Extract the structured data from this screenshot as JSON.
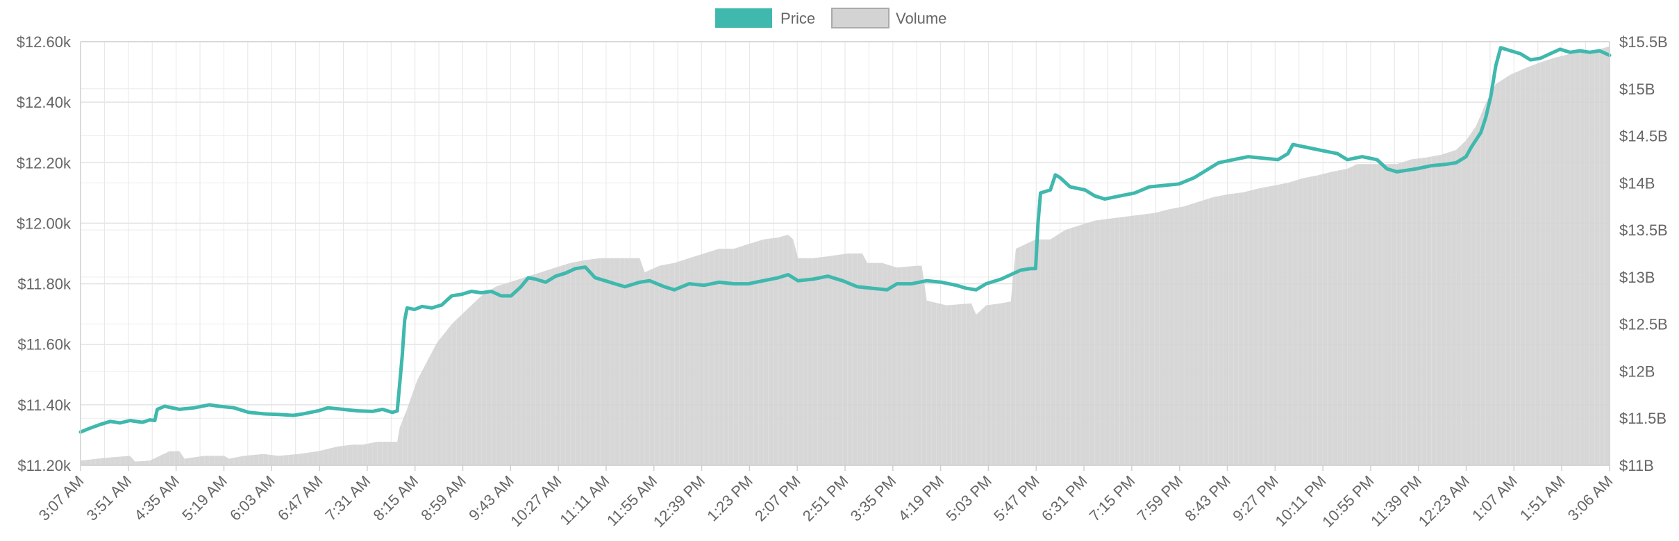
{
  "chart_data": {
    "type": "line",
    "legend": {
      "position": "top-center",
      "items": [
        {
          "label": "Price",
          "color": "#3fb8ad"
        },
        {
          "label": "Volume",
          "color": "#d3d3d3"
        }
      ]
    },
    "grid": true,
    "x_tick_labels": [
      "3:07 AM",
      "3:51 AM",
      "4:35 AM",
      "5:19 AM",
      "6:03 AM",
      "6:47 AM",
      "7:31 AM",
      "8:15 AM",
      "8:59 AM",
      "9:43 AM",
      "10:27 AM",
      "11:11 AM",
      "11:55 AM",
      "12:39 PM",
      "1:23 PM",
      "2:07 PM",
      "2:51 PM",
      "3:35 PM",
      "4:19 PM",
      "5:03 PM",
      "5:47 PM",
      "6:31 PM",
      "7:15 PM",
      "7:59 PM",
      "8:43 PM",
      "9:27 PM",
      "10:11 PM",
      "10:55 PM",
      "11:39 PM",
      "12:23 AM",
      "1:07 AM",
      "1:51 AM",
      "3:06 AM"
    ],
    "y_left": {
      "min": 11200,
      "max": 12600,
      "ticks": [
        11200,
        11400,
        11600,
        11800,
        12000,
        12200,
        12400,
        12600
      ],
      "tick_labels": [
        "$11.20k",
        "$11.40k",
        "$11.60k",
        "$11.80k",
        "$12.00k",
        "$12.20k",
        "$12.40k",
        "$12.60k"
      ]
    },
    "y_right": {
      "min": 11,
      "max": 15.5,
      "ticks": [
        11,
        11.5,
        12,
        12.5,
        13,
        13.5,
        14,
        14.5,
        15,
        15.5
      ],
      "tick_labels": [
        "$11B",
        "$11.5B",
        "$12B",
        "$12.5B",
        "$13B",
        "$13.5B",
        "$14B",
        "$14.5B",
        "$15B",
        "$15.5B"
      ]
    },
    "series": [
      {
        "name": "Price",
        "axis": "left",
        "color": "#3fb8ad",
        "points": [
          [
            0,
            11310
          ],
          [
            3,
            11320
          ],
          [
            8,
            11335
          ],
          [
            12,
            11345
          ],
          [
            16,
            11340
          ],
          [
            20,
            11348
          ],
          [
            25,
            11342
          ],
          [
            28,
            11350
          ],
          [
            30,
            11348
          ],
          [
            31,
            11385
          ],
          [
            34,
            11395
          ],
          [
            40,
            11385
          ],
          [
            46,
            11390
          ],
          [
            52,
            11400
          ],
          [
            56,
            11395
          ],
          [
            62,
            11390
          ],
          [
            68,
            11375
          ],
          [
            74,
            11370
          ],
          [
            80,
            11368
          ],
          [
            86,
            11365
          ],
          [
            90,
            11370
          ],
          [
            96,
            11380
          ],
          [
            100,
            11390
          ],
          [
            106,
            11385
          ],
          [
            112,
            11380
          ],
          [
            118,
            11378
          ],
          [
            122,
            11385
          ],
          [
            126,
            11375
          ],
          [
            128,
            11380
          ],
          [
            130,
            11560
          ],
          [
            131,
            11680
          ],
          [
            132,
            11720
          ],
          [
            135,
            11715
          ],
          [
            138,
            11725
          ],
          [
            142,
            11720
          ],
          [
            146,
            11730
          ],
          [
            150,
            11760
          ],
          [
            154,
            11765
          ],
          [
            158,
            11775
          ],
          [
            162,
            11770
          ],
          [
            166,
            11775
          ],
          [
            170,
            11760
          ],
          [
            174,
            11760
          ],
          [
            178,
            11790
          ],
          [
            181,
            11820
          ],
          [
            184,
            11815
          ],
          [
            188,
            11805
          ],
          [
            192,
            11825
          ],
          [
            196,
            11835
          ],
          [
            200,
            11850
          ],
          [
            204,
            11855
          ],
          [
            208,
            11820
          ],
          [
            212,
            11810
          ],
          [
            216,
            11800
          ],
          [
            220,
            11790
          ],
          [
            226,
            11805
          ],
          [
            230,
            11810
          ],
          [
            236,
            11790
          ],
          [
            240,
            11780
          ],
          [
            246,
            11800
          ],
          [
            252,
            11795
          ],
          [
            258,
            11805
          ],
          [
            264,
            11800
          ],
          [
            270,
            11800
          ],
          [
            276,
            11810
          ],
          [
            282,
            11820
          ],
          [
            286,
            11830
          ],
          [
            290,
            11810
          ],
          [
            296,
            11815
          ],
          [
            302,
            11825
          ],
          [
            308,
            11810
          ],
          [
            314,
            11790
          ],
          [
            320,
            11785
          ],
          [
            326,
            11780
          ],
          [
            330,
            11800
          ],
          [
            336,
            11800
          ],
          [
            342,
            11810
          ],
          [
            348,
            11805
          ],
          [
            354,
            11795
          ],
          [
            358,
            11785
          ],
          [
            362,
            11780
          ],
          [
            366,
            11800
          ],
          [
            372,
            11815
          ],
          [
            376,
            11830
          ],
          [
            380,
            11845
          ],
          [
            384,
            11850
          ],
          [
            386,
            11850
          ],
          [
            387,
            12000
          ],
          [
            388,
            12100
          ],
          [
            392,
            12110
          ],
          [
            394,
            12160
          ],
          [
            396,
            12150
          ],
          [
            400,
            12120
          ],
          [
            406,
            12110
          ],
          [
            410,
            12090
          ],
          [
            414,
            12080
          ],
          [
            420,
            12090
          ],
          [
            426,
            12100
          ],
          [
            432,
            12120
          ],
          [
            438,
            12125
          ],
          [
            444,
            12130
          ],
          [
            450,
            12150
          ],
          [
            456,
            12180
          ],
          [
            460,
            12200
          ],
          [
            466,
            12210
          ],
          [
            472,
            12220
          ],
          [
            478,
            12215
          ],
          [
            484,
            12210
          ],
          [
            488,
            12230
          ],
          [
            490,
            12260
          ],
          [
            496,
            12250
          ],
          [
            502,
            12240
          ],
          [
            508,
            12230
          ],
          [
            512,
            12210
          ],
          [
            518,
            12220
          ],
          [
            524,
            12210
          ],
          [
            528,
            12180
          ],
          [
            532,
            12170
          ],
          [
            536,
            12175
          ],
          [
            540,
            12180
          ],
          [
            546,
            12190
          ],
          [
            552,
            12195
          ],
          [
            556,
            12200
          ],
          [
            560,
            12220
          ],
          [
            562,
            12250
          ],
          [
            566,
            12300
          ],
          [
            568,
            12350
          ],
          [
            570,
            12420
          ],
          [
            572,
            12520
          ],
          [
            574,
            12580
          ],
          [
            578,
            12570
          ],
          [
            582,
            12560
          ],
          [
            586,
            12540
          ],
          [
            590,
            12545
          ],
          [
            594,
            12560
          ],
          [
            598,
            12575
          ],
          [
            602,
            12565
          ],
          [
            606,
            12570
          ],
          [
            610,
            12565
          ],
          [
            614,
            12570
          ],
          [
            618,
            12555
          ]
        ]
      },
      {
        "name": "Volume",
        "axis": "right",
        "color": "#d3d3d3",
        "points": [
          [
            0,
            11.05
          ],
          [
            10,
            11.08
          ],
          [
            20,
            11.1
          ],
          [
            22,
            11.04
          ],
          [
            28,
            11.05
          ],
          [
            32,
            11.1
          ],
          [
            36,
            11.15
          ],
          [
            40,
            11.15
          ],
          [
            42,
            11.07
          ],
          [
            50,
            11.1
          ],
          [
            58,
            11.1
          ],
          [
            60,
            11.07
          ],
          [
            66,
            11.1
          ],
          [
            74,
            11.12
          ],
          [
            80,
            11.1
          ],
          [
            88,
            11.12
          ],
          [
            96,
            11.15
          ],
          [
            104,
            11.2
          ],
          [
            110,
            11.22
          ],
          [
            114,
            11.22
          ],
          [
            120,
            11.25
          ],
          [
            128,
            11.25
          ],
          [
            129,
            11.4
          ],
          [
            132,
            11.6
          ],
          [
            136,
            11.9
          ],
          [
            140,
            12.1
          ],
          [
            144,
            12.3
          ],
          [
            150,
            12.5
          ],
          [
            156,
            12.65
          ],
          [
            162,
            12.8
          ],
          [
            168,
            12.9
          ],
          [
            174,
            12.95
          ],
          [
            180,
            13.0
          ],
          [
            186,
            13.05
          ],
          [
            192,
            13.1
          ],
          [
            198,
            13.15
          ],
          [
            204,
            13.18
          ],
          [
            210,
            13.2
          ],
          [
            216,
            13.2
          ],
          [
            222,
            13.2
          ],
          [
            226,
            13.2
          ],
          [
            228,
            13.05
          ],
          [
            234,
            13.12
          ],
          [
            240,
            13.15
          ],
          [
            246,
            13.2
          ],
          [
            252,
            13.25
          ],
          [
            258,
            13.3
          ],
          [
            264,
            13.3
          ],
          [
            270,
            13.35
          ],
          [
            276,
            13.4
          ],
          [
            282,
            13.42
          ],
          [
            286,
            13.45
          ],
          [
            288,
            13.4
          ],
          [
            290,
            13.2
          ],
          [
            296,
            13.2
          ],
          [
            302,
            13.22
          ],
          [
            310,
            13.25
          ],
          [
            316,
            13.25
          ],
          [
            318,
            13.15
          ],
          [
            324,
            13.15
          ],
          [
            330,
            13.1
          ],
          [
            338,
            13.12
          ],
          [
            340,
            13.12
          ],
          [
            342,
            12.75
          ],
          [
            350,
            12.7
          ],
          [
            360,
            12.72
          ],
          [
            362,
            12.6
          ],
          [
            366,
            12.7
          ],
          [
            372,
            12.72
          ],
          [
            376,
            12.74
          ],
          [
            378,
            13.3
          ],
          [
            386,
            13.4
          ],
          [
            392,
            13.4
          ],
          [
            398,
            13.5
          ],
          [
            404,
            13.55
          ],
          [
            410,
            13.6
          ],
          [
            416,
            13.62
          ],
          [
            422,
            13.64
          ],
          [
            428,
            13.66
          ],
          [
            434,
            13.68
          ],
          [
            440,
            13.72
          ],
          [
            446,
            13.75
          ],
          [
            452,
            13.8
          ],
          [
            458,
            13.85
          ],
          [
            464,
            13.88
          ],
          [
            470,
            13.9
          ],
          [
            476,
            13.94
          ],
          [
            482,
            13.97
          ],
          [
            488,
            14.0
          ],
          [
            494,
            14.05
          ],
          [
            500,
            14.08
          ],
          [
            506,
            14.12
          ],
          [
            512,
            14.15
          ],
          [
            516,
            14.2
          ],
          [
            520,
            14.2
          ],
          [
            526,
            14.2
          ],
          [
            532,
            14.2
          ],
          [
            538,
            14.25
          ],
          [
            544,
            14.27
          ],
          [
            550,
            14.3
          ],
          [
            556,
            14.35
          ],
          [
            560,
            14.45
          ],
          [
            564,
            14.6
          ],
          [
            568,
            14.85
          ],
          [
            572,
            15.05
          ],
          [
            578,
            15.15
          ],
          [
            584,
            15.22
          ],
          [
            590,
            15.28
          ],
          [
            596,
            15.33
          ],
          [
            602,
            15.37
          ],
          [
            608,
            15.4
          ],
          [
            614,
            15.42
          ],
          [
            618,
            15.45
          ]
        ]
      }
    ],
    "x_index_range": [
      0,
      618
    ]
  }
}
